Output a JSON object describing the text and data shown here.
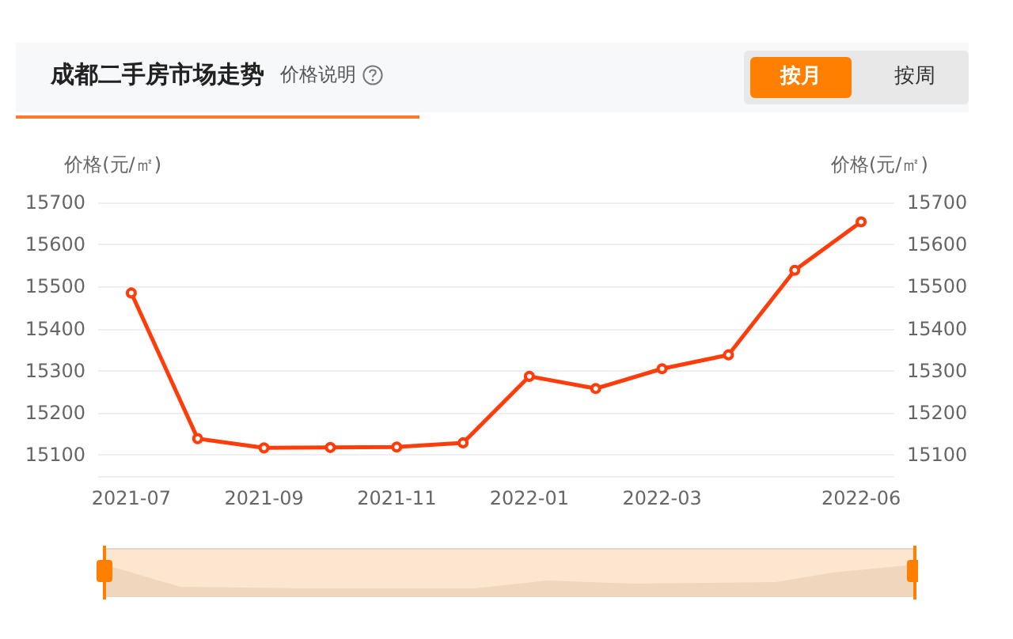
{
  "chart_data": {
    "type": "line",
    "title": "成都二手房市场走势",
    "subtitle": "价格说明",
    "annotations": [
      "按月",
      "按周"
    ],
    "ylabel": "价格(元/㎡)",
    "y2label": "价格(元/㎡)",
    "categories": [
      "2021-07",
      null,
      "2021-09",
      null,
      "2021-11",
      null,
      "2022-01",
      null,
      "2022-03",
      null,
      null,
      "2022-06"
    ],
    "series": [
      {
        "color": "#ff3d0a",
        "values": [
          15485,
          15139,
          15117,
          15118,
          15119,
          15129,
          15287,
          15258,
          15305,
          15338,
          15539,
          15654
        ]
      }
    ],
    "ylim": [
      15050,
      15700
    ],
    "yticks": [
      15100,
      15200,
      15300,
      15400,
      15500,
      15600,
      15700
    ],
    "y2lim": [
      15050,
      15700
    ],
    "y2ticks": [
      15100,
      15200,
      15300,
      15400,
      15500,
      15600,
      15700
    ],
    "grid": "y",
    "marker": "circle",
    "line_style": "solid"
  }
}
